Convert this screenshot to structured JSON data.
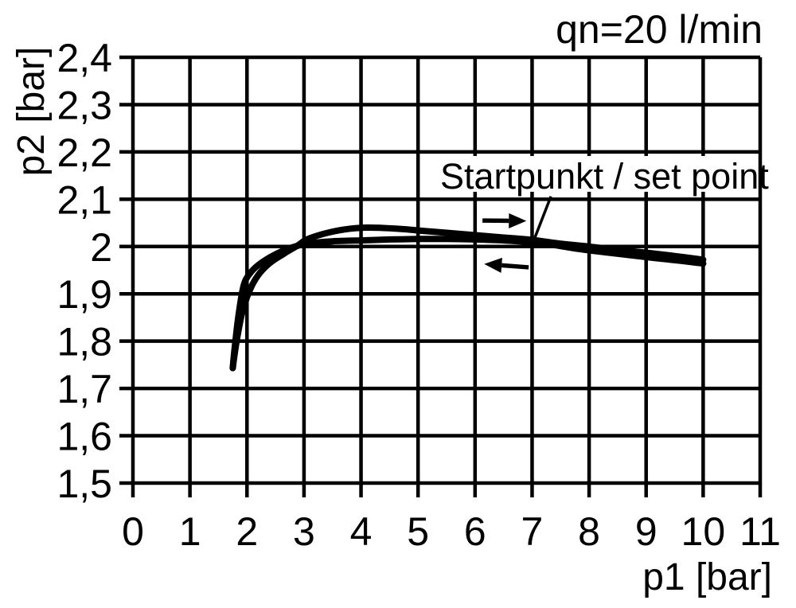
{
  "chart_data": {
    "type": "line",
    "title": "qn=20 l/min",
    "xlabel": "p1 [bar]",
    "ylabel": "p2 [bar]",
    "xlim": [
      0,
      11
    ],
    "ylim": [
      1.5,
      2.4
    ],
    "grid": true,
    "decimal_separator": ",",
    "line_color": "#000000",
    "background_color": "#ffffff",
    "x_ticks": {
      "values": [
        0,
        1,
        2,
        3,
        4,
        5,
        6,
        7,
        8,
        9,
        10,
        11
      ],
      "labels": [
        "0",
        "1",
        "2",
        "3",
        "4",
        "5",
        "6",
        "7",
        "8",
        "9",
        "10",
        "11"
      ]
    },
    "y_ticks": {
      "values": [
        2.4,
        2.3,
        2.2,
        2.1,
        2.0,
        1.9,
        1.8,
        1.7,
        1.6,
        1.5
      ],
      "labels": [
        "2,4",
        "2,3",
        "2,2",
        "2,1",
        "2",
        "1,9",
        "1,8",
        "1,7",
        "1,6",
        "1,5"
      ]
    },
    "series": [
      {
        "name": "hysteresis-branch-lower-plateau",
        "points": [
          [
            1.75,
            1.743
          ],
          [
            1.78,
            1.781
          ],
          [
            1.85,
            1.853
          ],
          [
            1.94,
            1.917
          ],
          [
            2.05,
            1.943
          ],
          [
            2.2,
            1.961
          ],
          [
            2.4,
            1.977
          ],
          [
            2.65,
            1.992
          ],
          [
            2.9,
            2.002
          ],
          [
            3.1,
            2.007
          ],
          [
            3.5,
            2.011
          ],
          [
            4.0,
            2.013
          ],
          [
            4.5,
            2.015
          ],
          [
            5.0,
            2.016
          ],
          [
            5.5,
            2.016
          ],
          [
            6.0,
            2.015
          ],
          [
            6.5,
            2.013
          ],
          [
            7.0,
            2.009
          ],
          [
            7.4,
            2.003
          ],
          [
            7.8,
            1.995
          ],
          [
            8.2,
            1.989
          ],
          [
            8.7,
            1.982
          ],
          [
            9.2,
            1.975
          ],
          [
            9.6,
            1.97
          ],
          [
            10.0,
            1.964
          ]
        ]
      },
      {
        "name": "hysteresis-branch-upper-plateau",
        "points": [
          [
            1.75,
            1.743
          ],
          [
            1.82,
            1.801
          ],
          [
            1.92,
            1.862
          ],
          [
            2.05,
            1.908
          ],
          [
            2.2,
            1.94
          ],
          [
            2.4,
            1.965
          ],
          [
            2.65,
            1.985
          ],
          [
            2.9,
            2.003
          ],
          [
            3.05,
            2.015
          ],
          [
            3.35,
            2.027
          ],
          [
            3.7,
            2.036
          ],
          [
            4.1,
            2.04
          ],
          [
            4.6,
            2.038
          ],
          [
            5.0,
            2.034
          ],
          [
            5.5,
            2.029
          ],
          [
            6.0,
            2.024
          ],
          [
            6.5,
            2.019
          ],
          [
            7.0,
            2.014
          ],
          [
            7.5,
            2.006
          ],
          [
            8.0,
            2.0
          ],
          [
            8.5,
            1.993
          ],
          [
            9.0,
            1.987
          ],
          [
            9.5,
            1.98
          ],
          [
            10.0,
            1.972
          ]
        ]
      }
    ],
    "annotations": {
      "set_point_label": {
        "text": "Startpunkt / set point",
        "text_pos": [
          5.39,
          2.121
        ],
        "leader_from": [
          7.33,
          2.106
        ],
        "leader_to": [
          7.04,
          2.016
        ]
      },
      "direction_arrows": [
        {
          "name": "rightward-direction-arrow",
          "from": [
            6.13,
            2.055
          ],
          "to": [
            6.9,
            2.054
          ]
        },
        {
          "name": "leftward-direction-arrow",
          "from": [
            6.94,
            1.956
          ],
          "to": [
            6.16,
            1.963
          ]
        }
      ]
    }
  }
}
